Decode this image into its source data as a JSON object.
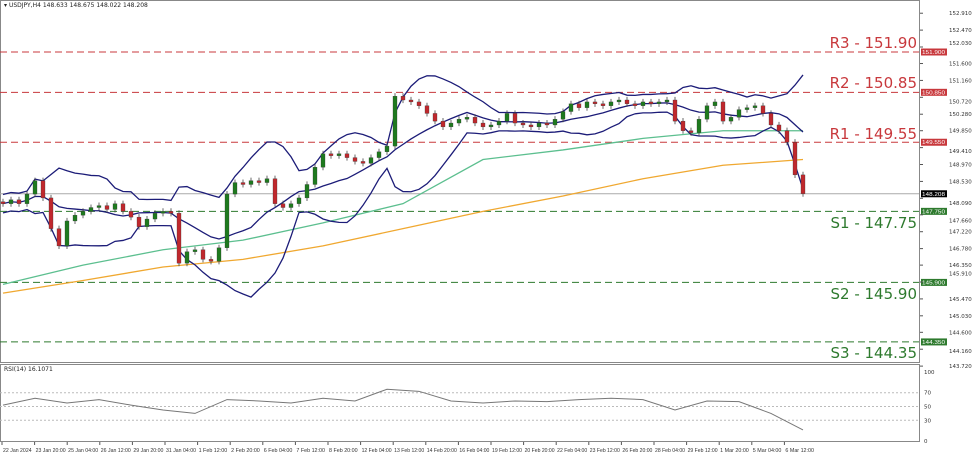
{
  "header": {
    "symbol": "USDJPY,H4",
    "open": "148.633",
    "high": "148.675",
    "low": "148.022",
    "close": "148.208"
  },
  "rsi_header": {
    "label": "RSI(14)",
    "value": "16.1071"
  },
  "levels": [
    {
      "name": "R3",
      "label": "R3 - 151.90",
      "value": 151.9,
      "axis_label": "151.900",
      "kind": "resistance"
    },
    {
      "name": "R2",
      "label": "R2 - 150.85",
      "value": 150.85,
      "axis_label": "150.850",
      "kind": "resistance"
    },
    {
      "name": "R1",
      "label": "R1 - 149.55",
      "value": 149.55,
      "axis_label": "149.550",
      "kind": "resistance"
    },
    {
      "name": "S1",
      "label": "S1 - 147.75",
      "value": 147.75,
      "axis_label": "147.750",
      "kind": "support"
    },
    {
      "name": "S2",
      "label": "S2 - 145.90",
      "value": 145.9,
      "axis_label": "145.900",
      "kind": "support"
    },
    {
      "name": "S3",
      "label": "S3 - 144.35",
      "value": 144.35,
      "axis_label": "144.350",
      "kind": "support"
    }
  ],
  "current_price": {
    "value": 148.208,
    "label": "148.208"
  },
  "colors": {
    "resistance": "#c8383c",
    "support": "#2e7a2e",
    "bull": "#1e7a1e",
    "bear": "#c0282d",
    "bands": "#1c1c78",
    "ma_fast": "#5cbf8f",
    "ma_slow": "#f0a830",
    "current": "#000000"
  },
  "chart_data": {
    "type": "candlestick",
    "title": "",
    "price_axis": {
      "range": [
        143.88,
        153.2
      ],
      "ticks": [
        "152.910",
        "152.470",
        "152.030",
        "151.600",
        "151.160",
        "150.720",
        "150.280",
        "149.850",
        "149.410",
        "148.970",
        "148.530",
        "148.090",
        "147.660",
        "147.220",
        "146.780",
        "146.350",
        "145.910",
        "145.470",
        "145.030",
        "144.600",
        "144.160",
        "143.720"
      ]
    },
    "time_axis": {
      "ticks": [
        "22 Jan 2024",
        "23 Jan 20:00",
        "25 Jan 04:00",
        "26 Jan 12:00",
        "29 Jan 20:00",
        "31 Jan 04:00",
        "1 Feb 12:00",
        "2 Feb 20:00",
        "6 Feb 04:00",
        "7 Feb 12:00",
        "8 Feb 20:00",
        "12 Feb 04:00",
        "13 Feb 12:00",
        "14 Feb 20:00",
        "16 Feb 04:00",
        "19 Feb 12:00",
        "20 Feb 20:00",
        "22 Feb 04:00",
        "23 Feb 12:00",
        "26 Feb 20:00",
        "28 Feb 04:00",
        "29 Feb 12:00",
        "1 Mar 20:00",
        "5 Mar 04:00",
        "6 Mar 12:00"
      ]
    },
    "closes": [
      147.95,
      148.05,
      147.95,
      148.2,
      148.55,
      148.1,
      147.3,
      146.85,
      147.5,
      147.65,
      147.75,
      147.85,
      147.9,
      147.8,
      147.95,
      147.75,
      147.6,
      147.35,
      147.55,
      147.7,
      147.75,
      147.7,
      146.4,
      146.7,
      146.75,
      146.5,
      146.45,
      146.8,
      148.2,
      148.5,
      148.45,
      148.55,
      148.5,
      148.6,
      147.95,
      147.85,
      147.95,
      148.1,
      148.45,
      148.9,
      149.25,
      149.2,
      149.25,
      149.15,
      149.05,
      149.0,
      149.15,
      149.3,
      149.45,
      150.75,
      150.65,
      150.6,
      150.5,
      150.3,
      150.1,
      149.95,
      150.05,
      150.15,
      150.2,
      150.05,
      149.95,
      150.0,
      150.1,
      150.3,
      150.05,
      150.0,
      149.95,
      150.05,
      150.0,
      150.15,
      150.35,
      150.55,
      150.45,
      150.6,
      150.55,
      150.5,
      150.6,
      150.65,
      150.55,
      150.5,
      150.6,
      150.55,
      150.6,
      150.65,
      150.1,
      149.85,
      149.8,
      150.15,
      150.5,
      150.6,
      150.1,
      150.2,
      150.4,
      150.45,
      150.5,
      150.3,
      150.0,
      149.85,
      149.55,
      148.7,
      148.21
    ],
    "ma_fast_every10": [
      145.85,
      146.35,
      146.75,
      147.0,
      147.45,
      147.95,
      149.1,
      149.35,
      149.65,
      149.85,
      149.85
    ],
    "ma_slow_every10": [
      145.62,
      145.95,
      146.3,
      146.5,
      146.85,
      147.3,
      147.75,
      148.15,
      148.6,
      148.95,
      149.1
    ],
    "bollinger": {
      "period": 10,
      "deviations": 2
    },
    "rsi": {
      "range": [
        0,
        100
      ],
      "levels": [
        70,
        50,
        30
      ],
      "tick_labels": [
        "100",
        "70",
        "50",
        "30",
        "0"
      ],
      "values_every4": [
        52,
        62,
        55,
        60,
        52,
        45,
        40,
        60,
        58,
        55,
        62,
        58,
        75,
        72,
        58,
        55,
        58,
        57,
        60,
        62,
        60,
        45,
        58,
        57,
        40,
        16
      ]
    }
  }
}
